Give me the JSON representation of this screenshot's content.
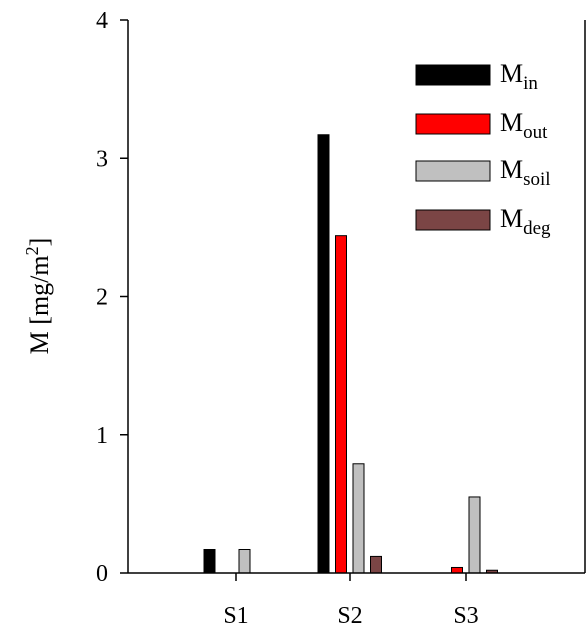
{
  "chart_data": {
    "type": "bar",
    "categories": [
      "S1",
      "S2",
      "S3"
    ],
    "ylabel": {
      "main": "M [mg/m",
      "sup": "2",
      "end": "]"
    },
    "ylim": [
      0,
      4
    ],
    "yticks": [
      "0",
      "1",
      "2",
      "3",
      "4"
    ],
    "grid": false,
    "legend_position": "top-right",
    "series": [
      {
        "name": "M",
        "sub": "in",
        "color": "#000000",
        "values": [
          0.17,
          3.17,
          0.0
        ]
      },
      {
        "name": "M",
        "sub": "out",
        "color": "#ff0000",
        "values": [
          0.0,
          2.44,
          0.04
        ]
      },
      {
        "name": "M",
        "sub": "soil",
        "color": "#c0c0c0",
        "values": [
          0.17,
          0.79,
          0.55
        ]
      },
      {
        "name": "M",
        "sub": "deg",
        "color": "#7b4545",
        "values": [
          0.0,
          0.12,
          0.02
        ]
      }
    ]
  }
}
